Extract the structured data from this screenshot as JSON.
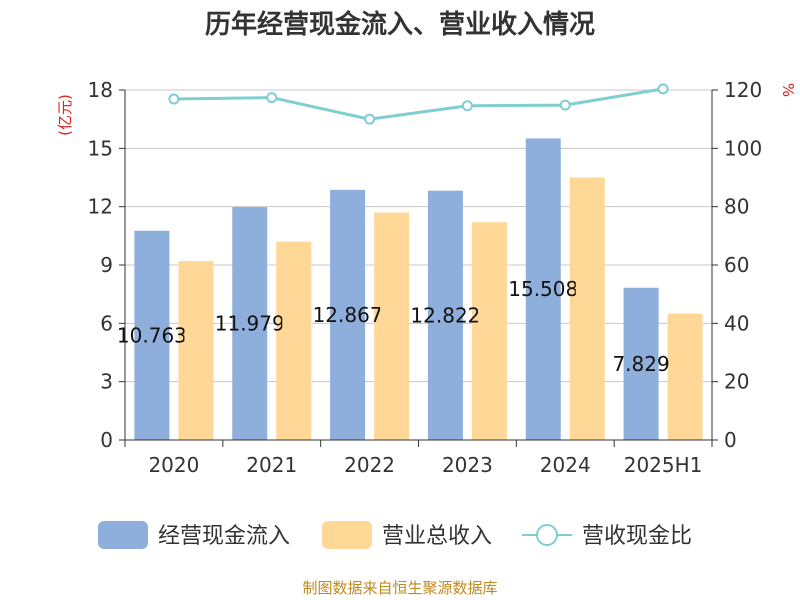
{
  "chart_data": {
    "type": "bar",
    "title": "历年经营现金流入、营业收入情况",
    "categories": [
      "2020",
      "2021",
      "2022",
      "2023",
      "2024",
      "2025H1"
    ],
    "series": [
      {
        "name": "经营现金流入",
        "type": "bar",
        "axis": "left",
        "color": "#8eaedb",
        "values": [
          10.763,
          11.979,
          12.867,
          12.822,
          15.508,
          7.829
        ]
      },
      {
        "name": "营业总收入",
        "type": "bar",
        "axis": "left",
        "color": "#ffd898",
        "values": [
          9.2,
          10.2,
          11.7,
          11.2,
          13.5,
          6.5
        ]
      },
      {
        "name": "营收现金比",
        "type": "line",
        "axis": "right",
        "color": "#7fcfd2",
        "values": [
          116.9,
          117.4,
          110.0,
          114.6,
          114.8,
          120.4
        ]
      }
    ],
    "data_labels": [
      "10.763",
      "11.979",
      "12.867",
      "12.822",
      "15.508",
      "7.829"
    ],
    "y_left": {
      "label": "(亿元)",
      "ylim": [
        0,
        18
      ],
      "ticks": [
        0,
        3,
        6,
        9,
        12,
        15,
        18
      ]
    },
    "y_right": {
      "label": "%",
      "ylim": [
        0,
        120
      ],
      "ticks": [
        0,
        20,
        40,
        60,
        80,
        100,
        120
      ]
    },
    "grid": true,
    "legend_position": "bottom",
    "source": "制图数据来自恒生聚源数据库"
  }
}
